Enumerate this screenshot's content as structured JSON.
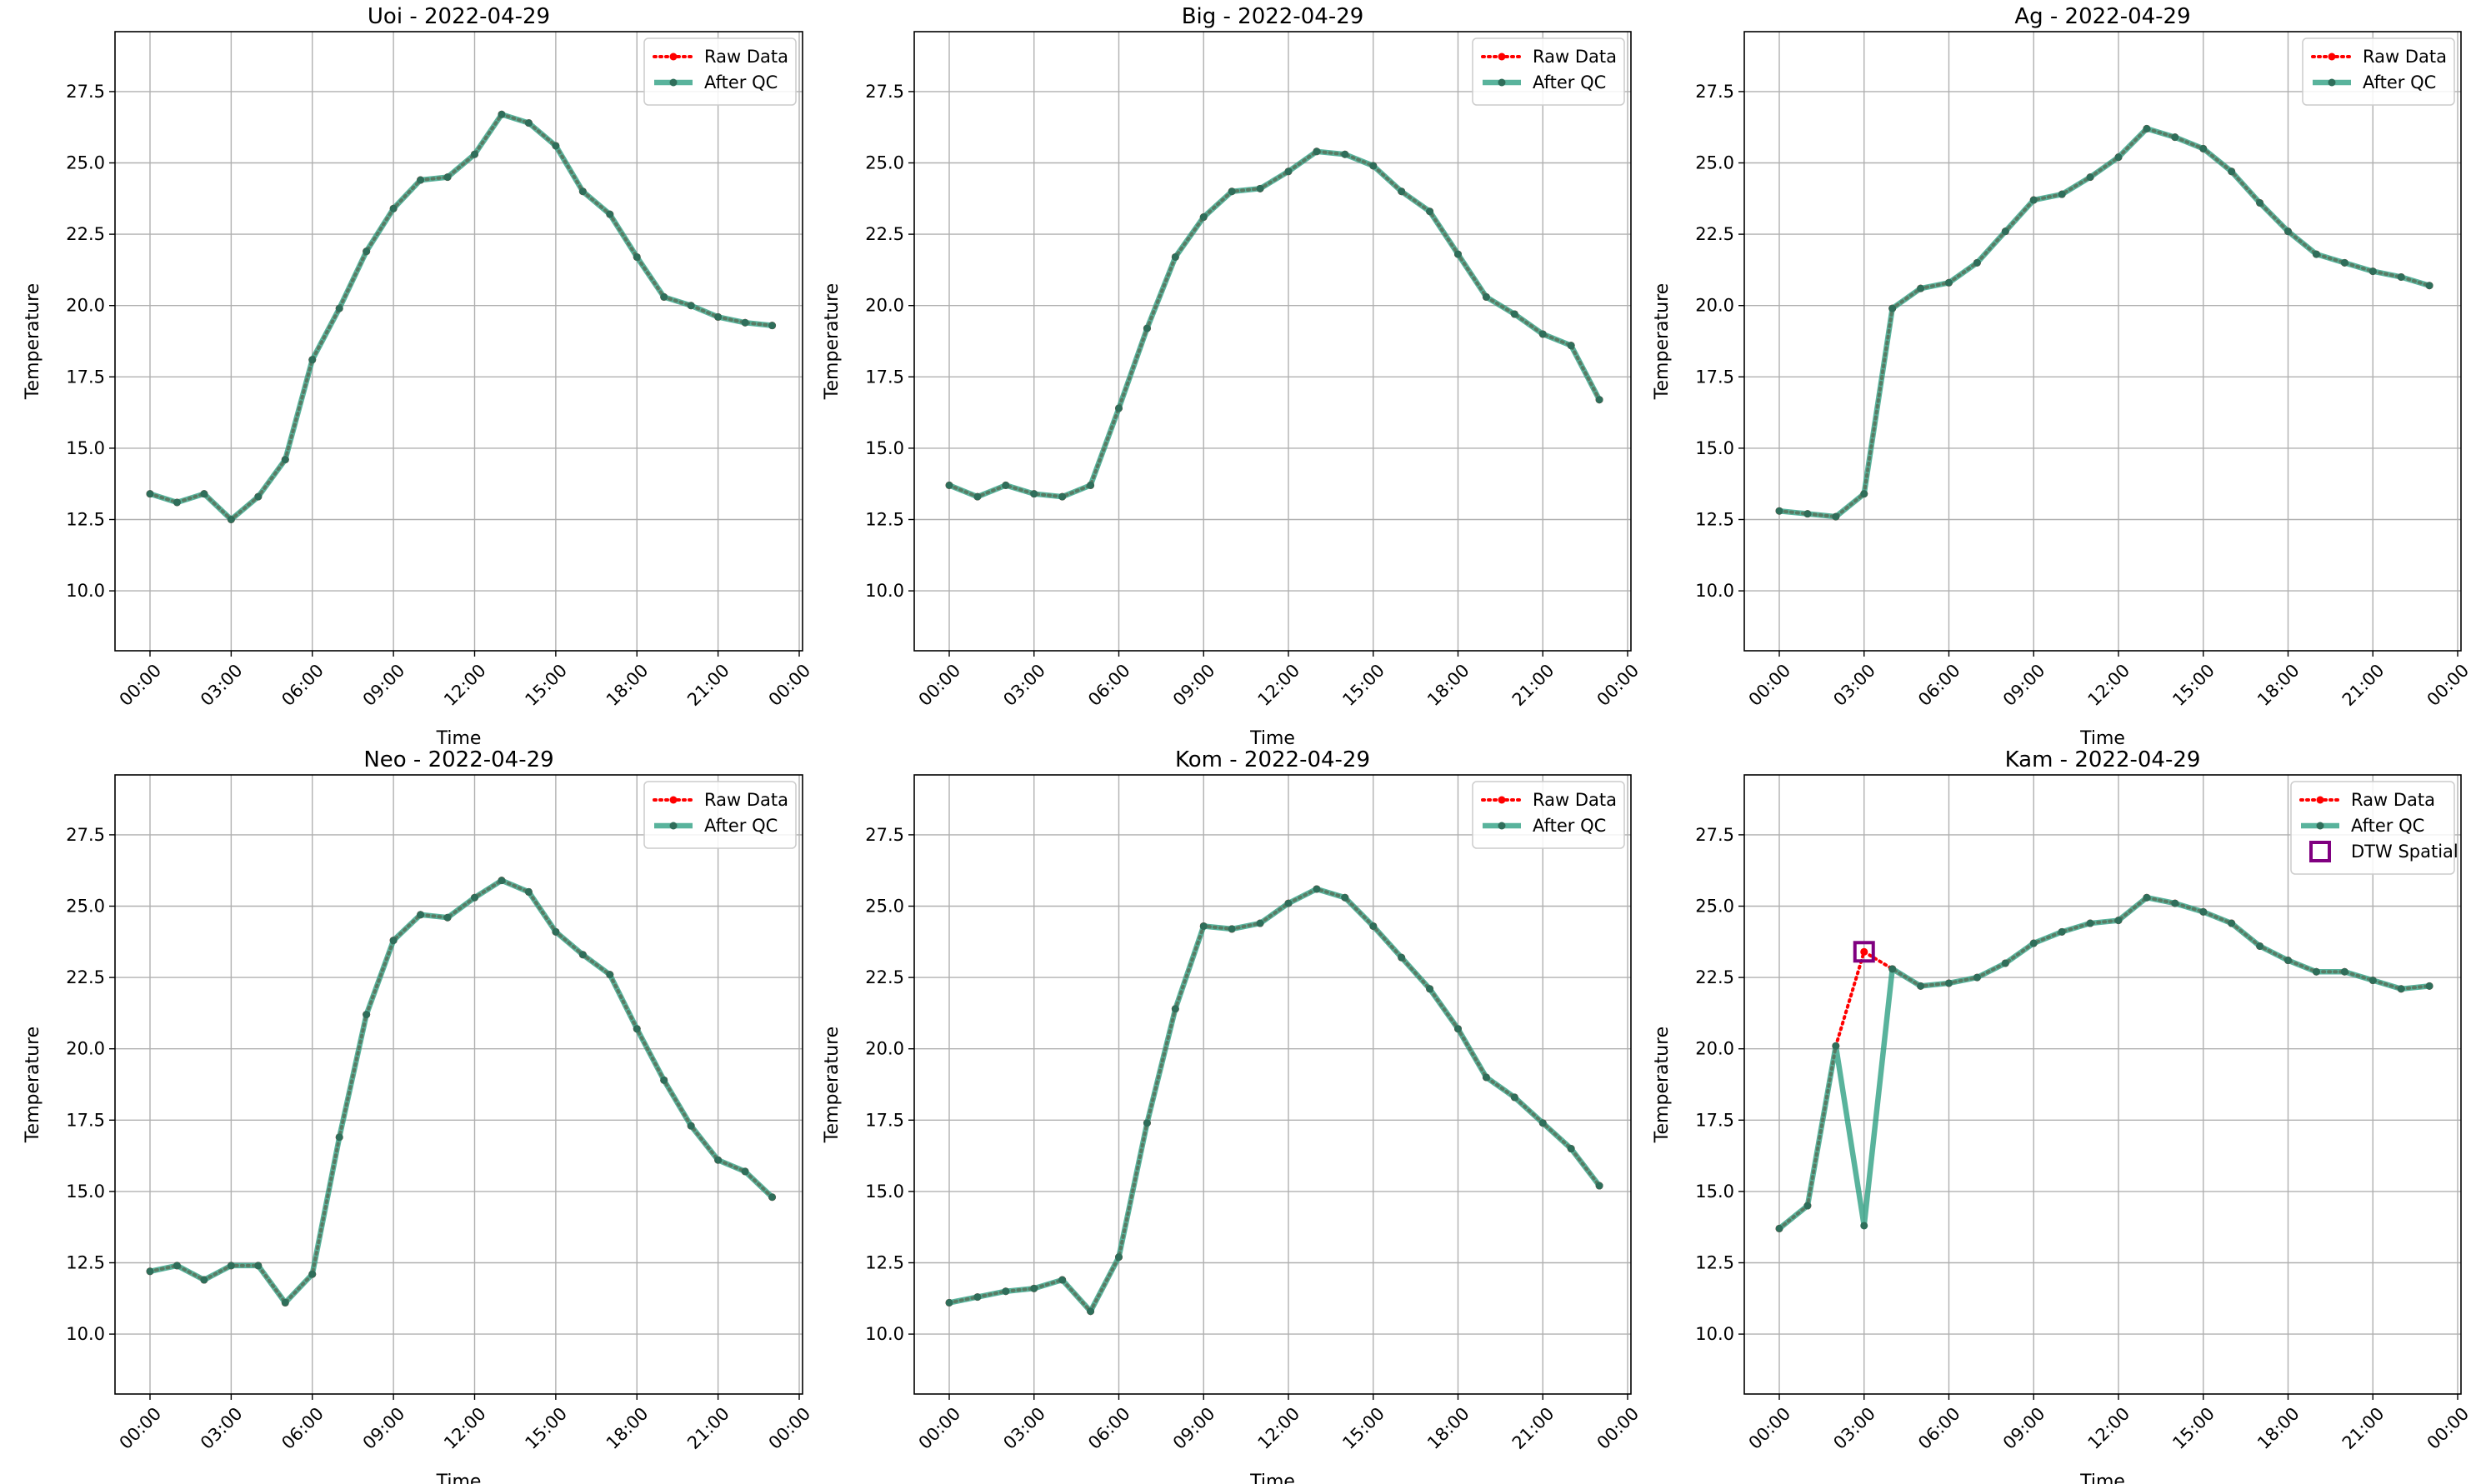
{
  "figure": {
    "x_ticks": [
      "00:00",
      "03:00",
      "06:00",
      "09:00",
      "12:00",
      "15:00",
      "18:00",
      "21:00",
      "00:00"
    ],
    "y_ticks": [
      "10.0",
      "12.5",
      "15.0",
      "17.5",
      "20.0",
      "22.5",
      "25.0",
      "27.5"
    ]
  },
  "chart_data": [
    {
      "type": "line",
      "title": "Uoi - 2022-04-29",
      "xlabel": "Time",
      "ylabel": "Temperature",
      "x": [
        "00:00",
        "01:00",
        "02:00",
        "03:00",
        "04:00",
        "05:00",
        "06:00",
        "07:00",
        "08:00",
        "09:00",
        "10:00",
        "11:00",
        "12:00",
        "13:00",
        "14:00",
        "15:00",
        "16:00",
        "17:00",
        "18:00",
        "19:00",
        "20:00",
        "21:00",
        "22:00",
        "23:00"
      ],
      "xlim": [
        "00:00",
        "24:00"
      ],
      "ylim": [
        7.9,
        29.6
      ],
      "grid": true,
      "legend_position": "upper right",
      "series": [
        {
          "name": "Raw Data",
          "color": "#ff0000",
          "style": "dotted",
          "values": [
            13.4,
            13.1,
            13.4,
            12.5,
            13.3,
            14.6,
            18.1,
            19.9,
            21.9,
            23.4,
            24.4,
            24.5,
            25.3,
            26.7,
            26.4,
            25.6,
            24.0,
            23.2,
            21.7,
            20.3,
            20.0,
            19.6,
            19.4,
            19.3
          ]
        },
        {
          "name": "After QC",
          "color": "#2a9d80",
          "style": "solid",
          "values": [
            13.4,
            13.1,
            13.4,
            12.5,
            13.3,
            14.6,
            18.1,
            19.9,
            21.9,
            23.4,
            24.4,
            24.5,
            25.3,
            26.7,
            26.4,
            25.6,
            24.0,
            23.2,
            21.7,
            20.3,
            20.0,
            19.6,
            19.4,
            19.3
          ]
        }
      ]
    },
    {
      "type": "line",
      "title": "Big - 2022-04-29",
      "xlabel": "Time",
      "ylabel": "Temperature",
      "x": [
        "00:00",
        "01:00",
        "02:00",
        "03:00",
        "04:00",
        "05:00",
        "06:00",
        "07:00",
        "08:00",
        "09:00",
        "10:00",
        "11:00",
        "12:00",
        "13:00",
        "14:00",
        "15:00",
        "16:00",
        "17:00",
        "18:00",
        "19:00",
        "20:00",
        "21:00",
        "22:00",
        "23:00"
      ],
      "xlim": [
        "00:00",
        "24:00"
      ],
      "ylim": [
        7.9,
        29.6
      ],
      "grid": true,
      "legend_position": "upper right",
      "series": [
        {
          "name": "Raw Data",
          "color": "#ff0000",
          "style": "dotted",
          "values": [
            13.7,
            13.3,
            13.7,
            13.4,
            13.3,
            13.7,
            16.4,
            19.2,
            21.7,
            23.1,
            24.0,
            24.1,
            24.7,
            25.4,
            25.3,
            24.9,
            24.0,
            23.3,
            21.8,
            20.3,
            19.7,
            19.0,
            18.6,
            16.7
          ]
        },
        {
          "name": "After QC",
          "color": "#2a9d80",
          "style": "solid",
          "values": [
            13.7,
            13.3,
            13.7,
            13.4,
            13.3,
            13.7,
            16.4,
            19.2,
            21.7,
            23.1,
            24.0,
            24.1,
            24.7,
            25.4,
            25.3,
            24.9,
            24.0,
            23.3,
            21.8,
            20.3,
            19.7,
            19.0,
            18.6,
            16.7
          ]
        }
      ]
    },
    {
      "type": "line",
      "title": "Ag - 2022-04-29",
      "xlabel": "Time",
      "ylabel": "Temperature",
      "x": [
        "00:00",
        "01:00",
        "02:00",
        "03:00",
        "04:00",
        "05:00",
        "06:00",
        "07:00",
        "08:00",
        "09:00",
        "10:00",
        "11:00",
        "12:00",
        "13:00",
        "14:00",
        "15:00",
        "16:00",
        "17:00",
        "18:00",
        "19:00",
        "20:00",
        "21:00",
        "22:00",
        "23:00"
      ],
      "xlim": [
        "00:00",
        "24:00"
      ],
      "ylim": [
        7.9,
        29.6
      ],
      "grid": true,
      "legend_position": "upper right",
      "series": [
        {
          "name": "Raw Data",
          "color": "#ff0000",
          "style": "dotted",
          "values": [
            12.8,
            12.7,
            12.6,
            13.4,
            19.9,
            20.6,
            20.8,
            21.5,
            22.6,
            23.7,
            23.9,
            24.5,
            25.2,
            26.2,
            25.9,
            25.5,
            24.7,
            23.6,
            22.6,
            21.8,
            21.5,
            21.2,
            21.0,
            20.7
          ]
        },
        {
          "name": "After QC",
          "color": "#2a9d80",
          "style": "solid",
          "values": [
            12.8,
            12.7,
            12.6,
            13.4,
            19.9,
            20.6,
            20.8,
            21.5,
            22.6,
            23.7,
            23.9,
            24.5,
            25.2,
            26.2,
            25.9,
            25.5,
            24.7,
            23.6,
            22.6,
            21.8,
            21.5,
            21.2,
            21.0,
            20.7
          ]
        }
      ]
    },
    {
      "type": "line",
      "title": "Neo - 2022-04-29",
      "xlabel": "Time",
      "ylabel": "Temperature",
      "x": [
        "00:00",
        "01:00",
        "02:00",
        "03:00",
        "04:00",
        "05:00",
        "06:00",
        "07:00",
        "08:00",
        "09:00",
        "10:00",
        "11:00",
        "12:00",
        "13:00",
        "14:00",
        "15:00",
        "16:00",
        "17:00",
        "18:00",
        "19:00",
        "20:00",
        "21:00",
        "22:00",
        "23:00"
      ],
      "xlim": [
        "00:00",
        "24:00"
      ],
      "ylim": [
        7.9,
        29.6
      ],
      "grid": true,
      "legend_position": "upper right",
      "series": [
        {
          "name": "Raw Data",
          "color": "#ff0000",
          "style": "dotted",
          "values": [
            12.2,
            12.4,
            11.9,
            12.4,
            12.4,
            11.1,
            12.1,
            16.9,
            21.2,
            23.8,
            24.7,
            24.6,
            25.3,
            25.9,
            25.5,
            24.1,
            23.3,
            22.6,
            20.7,
            18.9,
            17.3,
            16.1,
            15.7,
            14.8
          ]
        },
        {
          "name": "After QC",
          "color": "#2a9d80",
          "style": "solid",
          "values": [
            12.2,
            12.4,
            11.9,
            12.4,
            12.4,
            11.1,
            12.1,
            16.9,
            21.2,
            23.8,
            24.7,
            24.6,
            25.3,
            25.9,
            25.5,
            24.1,
            23.3,
            22.6,
            20.7,
            18.9,
            17.3,
            16.1,
            15.7,
            14.8
          ]
        }
      ]
    },
    {
      "type": "line",
      "title": "Kom - 2022-04-29",
      "xlabel": "Time",
      "ylabel": "Temperature",
      "x": [
        "00:00",
        "01:00",
        "02:00",
        "03:00",
        "04:00",
        "05:00",
        "06:00",
        "07:00",
        "08:00",
        "09:00",
        "10:00",
        "11:00",
        "12:00",
        "13:00",
        "14:00",
        "15:00",
        "16:00",
        "17:00",
        "18:00",
        "19:00",
        "20:00",
        "21:00",
        "22:00",
        "23:00"
      ],
      "xlim": [
        "00:00",
        "24:00"
      ],
      "ylim": [
        7.9,
        29.6
      ],
      "grid": true,
      "legend_position": "upper right",
      "series": [
        {
          "name": "Raw Data",
          "color": "#ff0000",
          "style": "dotted",
          "values": [
            11.1,
            11.3,
            11.5,
            11.6,
            11.9,
            10.8,
            12.7,
            17.4,
            21.4,
            24.3,
            24.2,
            24.4,
            25.1,
            25.6,
            25.3,
            24.3,
            23.2,
            22.1,
            20.7,
            19.0,
            18.3,
            17.4,
            16.5,
            15.2
          ]
        },
        {
          "name": "After QC",
          "color": "#2a9d80",
          "style": "solid",
          "values": [
            11.1,
            11.3,
            11.5,
            11.6,
            11.9,
            10.8,
            12.7,
            17.4,
            21.4,
            24.3,
            24.2,
            24.4,
            25.1,
            25.6,
            25.3,
            24.3,
            23.2,
            22.1,
            20.7,
            19.0,
            18.3,
            17.4,
            16.5,
            15.2
          ]
        }
      ]
    },
    {
      "type": "line",
      "title": "Kam - 2022-04-29",
      "xlabel": "Time",
      "ylabel": "Temperature",
      "x": [
        "00:00",
        "01:00",
        "02:00",
        "03:00",
        "04:00",
        "05:00",
        "06:00",
        "07:00",
        "08:00",
        "09:00",
        "10:00",
        "11:00",
        "12:00",
        "13:00",
        "14:00",
        "15:00",
        "16:00",
        "17:00",
        "18:00",
        "19:00",
        "20:00",
        "21:00",
        "22:00",
        "23:00"
      ],
      "xlim": [
        "00:00",
        "24:00"
      ],
      "ylim": [
        7.9,
        29.6
      ],
      "grid": true,
      "legend_position": "upper right",
      "series": [
        {
          "name": "Raw Data",
          "color": "#ff0000",
          "style": "dotted",
          "values": [
            13.7,
            14.5,
            20.1,
            23.4,
            22.8,
            22.2,
            22.3,
            22.5,
            23.0,
            23.7,
            24.1,
            24.4,
            24.5,
            25.3,
            25.1,
            24.8,
            24.4,
            23.6,
            23.1,
            22.7,
            22.7,
            22.4,
            22.1,
            22.2
          ]
        },
        {
          "name": "After QC",
          "color": "#2a9d80",
          "style": "solid",
          "values": [
            13.7,
            14.5,
            20.1,
            13.8,
            22.8,
            22.2,
            22.3,
            22.5,
            23.0,
            23.7,
            24.1,
            24.4,
            24.5,
            25.3,
            25.1,
            24.8,
            24.4,
            23.6,
            23.1,
            22.7,
            22.7,
            22.4,
            22.1,
            22.2
          ]
        },
        {
          "name": "DTW Spatial",
          "color": "#800080",
          "style": "square-marker",
          "x": [
            "03:00"
          ],
          "values": [
            23.4
          ]
        }
      ]
    }
  ]
}
